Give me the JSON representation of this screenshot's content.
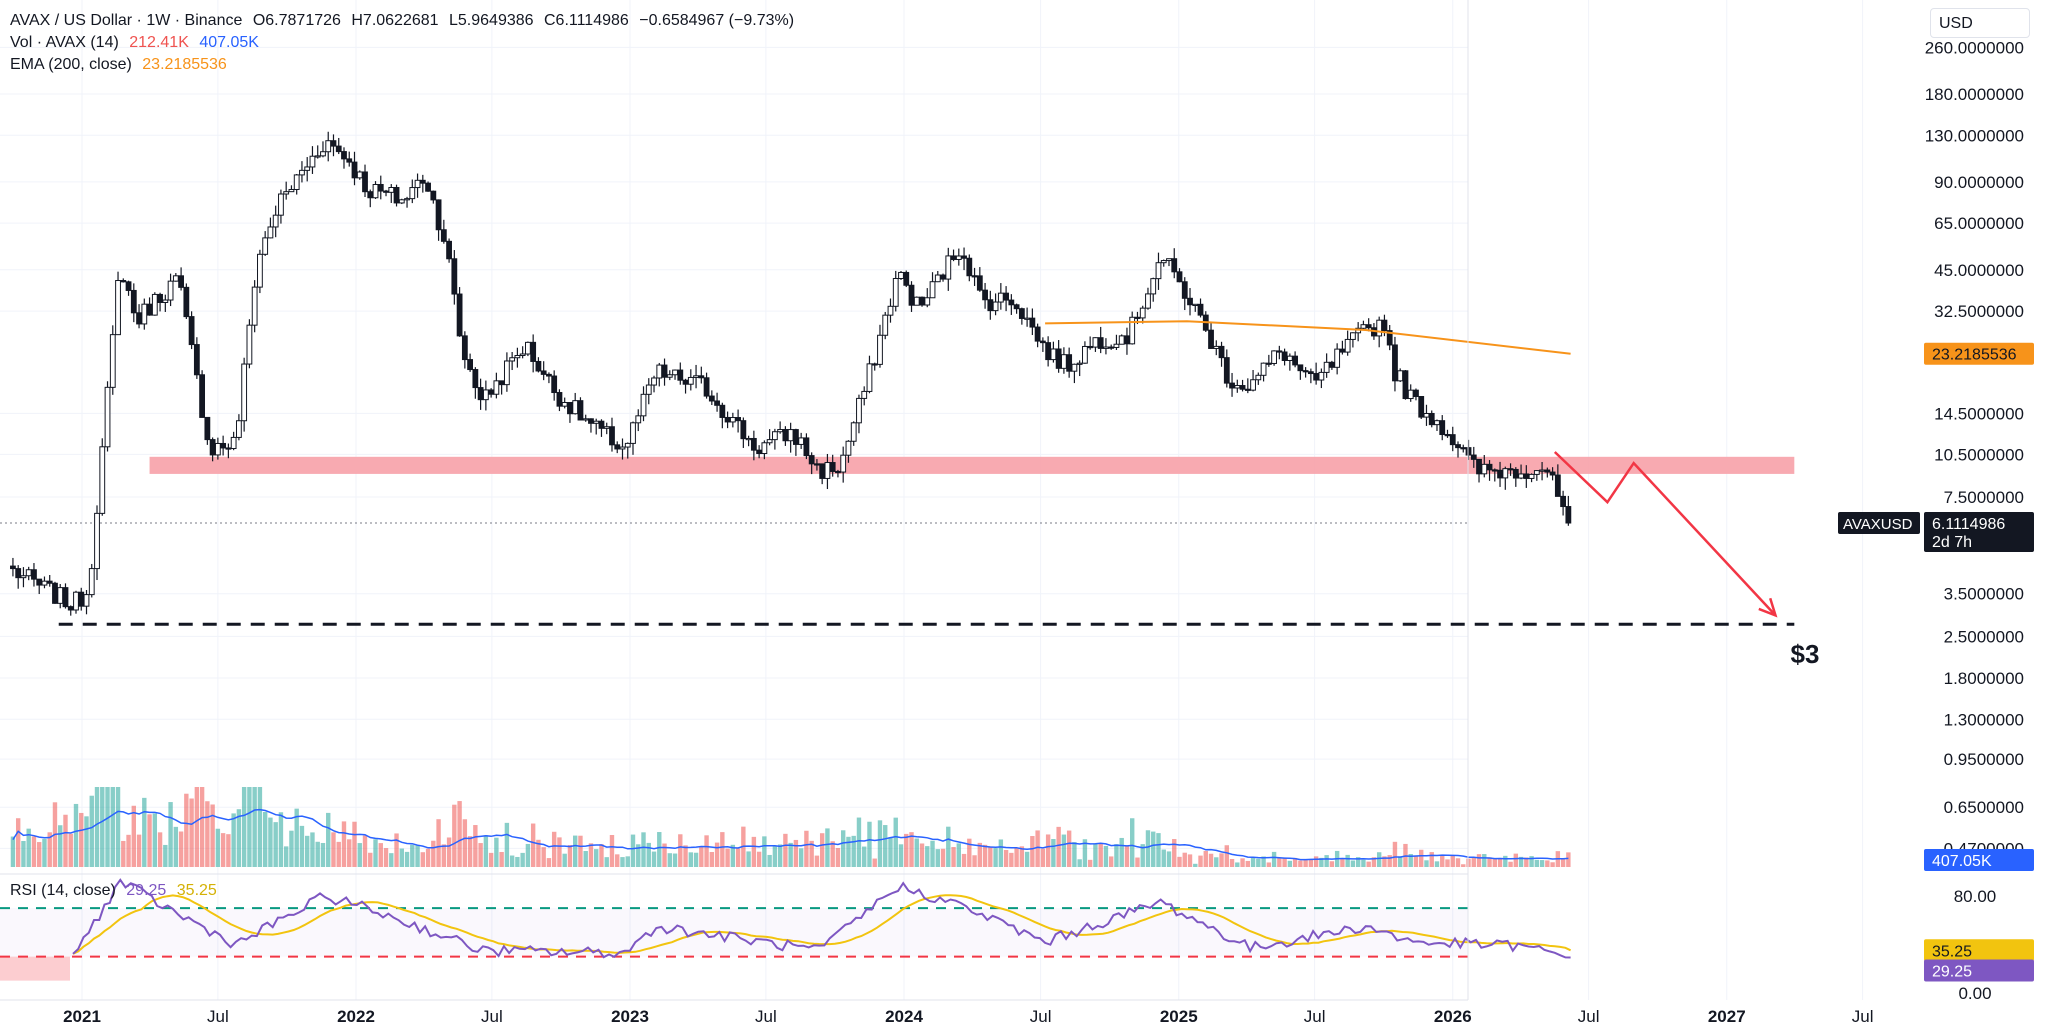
{
  "header": {
    "symbol": "AVAX / US Dollar · 1W · Binance",
    "open": "O6.7871726",
    "high": "H7.0622681",
    "low": "L5.9649386",
    "close": "C6.1114986",
    "change": "−0.6584967 (−9.73%)",
    "vol_label": "Vol · AVAX (14)",
    "vol_value": "212.41K",
    "vol_ma": "407.05K",
    "ema_label": "EMA (200, close)",
    "ema_value": "23.2185536",
    "rsi_label": "RSI (14, close)",
    "rsi_value": "29.25",
    "rsi_ma": "35.25",
    "currency": "USD"
  },
  "badges": {
    "ema": "23.2185536",
    "ticker": "AVAXUSD",
    "price": "6.1114986",
    "countdown": "2d 7h",
    "volume": "407.05K",
    "rsi_ma": "35.25",
    "rsi": "29.25"
  },
  "annotation": {
    "target_label": "$3"
  },
  "colors": {
    "up": "#26a69a",
    "down": "#ef5350",
    "candle": "#131722",
    "ema": "#f7931a",
    "vol_ma": "#2962ff",
    "rsi": "#7e57c2",
    "rsi_ma": "#f2c40f",
    "support_zone": "#f7a1a8",
    "arrow": "#f23645",
    "rsi_upper": "#089981",
    "rsi_lower": "#f23645"
  },
  "chart_data": {
    "type": "candlestick",
    "scale": "log",
    "x_axis": {
      "ticks": [
        "2021",
        "Jul",
        "2022",
        "Jul",
        "2023",
        "Jul",
        "2024",
        "Jul",
        "2025",
        "Jul",
        "2026",
        "Jul",
        "2027",
        "Jul"
      ],
      "bold": [
        "2021",
        "2022",
        "2023",
        "2024",
        "2025",
        "2026",
        "2027"
      ]
    },
    "y_axis": {
      "ticks": [
        "260.0000000",
        "180.0000000",
        "130.0000000",
        "90.0000000",
        "65.0000000",
        "45.0000000",
        "32.5000000",
        "14.5000000",
        "10.5000000",
        "7.5000000",
        "3.5000000",
        "2.5000000",
        "1.8000000",
        "1.3000000",
        "0.9500000",
        "0.6500000",
        "0.4700000"
      ],
      "tick_values": [
        260,
        180,
        130,
        90,
        65,
        45,
        32.5,
        14.5,
        10.5,
        7.5,
        3.5,
        2.5,
        1.8,
        1.3,
        0.95,
        0.65,
        0.47
      ]
    },
    "price_path": [
      {
        "date": "2020-10-01",
        "price": 4.2
      },
      {
        "date": "2020-12-20",
        "price": 3.2
      },
      {
        "date": "2021-01-10",
        "price": 3.6
      },
      {
        "date": "2021-02-07",
        "price": 20
      },
      {
        "date": "2021-02-21",
        "price": 48
      },
      {
        "date": "2021-03-14",
        "price": 30
      },
      {
        "date": "2021-04-11",
        "price": 36
      },
      {
        "date": "2021-05-09",
        "price": 42
      },
      {
        "date": "2021-06-20",
        "price": 11
      },
      {
        "date": "2021-07-25",
        "price": 11.5
      },
      {
        "date": "2021-08-22",
        "price": 48
      },
      {
        "date": "2021-09-19",
        "price": 75
      },
      {
        "date": "2021-11-21",
        "price": 125
      },
      {
        "date": "2021-12-19",
        "price": 110
      },
      {
        "date": "2022-01-16",
        "price": 85
      },
      {
        "date": "2022-03-06",
        "price": 78
      },
      {
        "date": "2022-04-03",
        "price": 95
      },
      {
        "date": "2022-05-01",
        "price": 55
      },
      {
        "date": "2022-05-22",
        "price": 24
      },
      {
        "date": "2022-06-19",
        "price": 16
      },
      {
        "date": "2022-08-14",
        "price": 25
      },
      {
        "date": "2022-09-25",
        "price": 17
      },
      {
        "date": "2022-11-13",
        "price": 13
      },
      {
        "date": "2022-12-25",
        "price": 11
      },
      {
        "date": "2023-02-05",
        "price": 20
      },
      {
        "date": "2023-04-09",
        "price": 18
      },
      {
        "date": "2023-06-18",
        "price": 11
      },
      {
        "date": "2023-08-06",
        "price": 12.5
      },
      {
        "date": "2023-09-10",
        "price": 9.2
      },
      {
        "date": "2023-10-08",
        "price": 9.5
      },
      {
        "date": "2023-11-19",
        "price": 21
      },
      {
        "date": "2023-12-24",
        "price": 44
      },
      {
        "date": "2024-01-21",
        "price": 33
      },
      {
        "date": "2024-03-17",
        "price": 55
      },
      {
        "date": "2024-04-14",
        "price": 35
      },
      {
        "date": "2024-05-26",
        "price": 36
      },
      {
        "date": "2024-07-07",
        "price": 24
      },
      {
        "date": "2024-08-04",
        "price": 21
      },
      {
        "date": "2024-09-15",
        "price": 26
      },
      {
        "date": "2024-10-27",
        "price": 27
      },
      {
        "date": "2024-12-08",
        "price": 50
      },
      {
        "date": "2025-01-12",
        "price": 37
      },
      {
        "date": "2025-02-16",
        "price": 25
      },
      {
        "date": "2025-03-09",
        "price": 19
      },
      {
        "date": "2025-04-06",
        "price": 18
      },
      {
        "date": "2025-05-18",
        "price": 24
      },
      {
        "date": "2025-06-29",
        "price": 18
      },
      {
        "date": "2025-08-03",
        "price": 23
      },
      {
        "date": "2025-09-07",
        "price": 28
      },
      {
        "date": "2025-10-05",
        "price": 30
      },
      {
        "date": "2025-10-12",
        "price": 21
      },
      {
        "date": "2025-11-09",
        "price": 16
      },
      {
        "date": "2025-12-21",
        "price": 13
      },
      {
        "date": "2026-02-01",
        "price": 9.2
      },
      {
        "date": "2026-03-29",
        "price": 9.3
      },
      {
        "date": "2026-05-03",
        "price": 9.6
      },
      {
        "date": "2026-05-24",
        "price": 7.2
      },
      {
        "date": "2026-06-07",
        "price": 6.11
      }
    ],
    "last_price": 6.1114986,
    "ema200": {
      "value": 23.2185536,
      "path": [
        {
          "date": "2024-07-07",
          "price": 29.5
        },
        {
          "date": "2025-01-12",
          "price": 30
        },
        {
          "date": "2025-09-07",
          "price": 28
        },
        {
          "date": "2026-06-07",
          "price": 23.2
        }
      ]
    },
    "support_zone": {
      "low": 9.0,
      "high": 10.3,
      "from": "2021-04-01",
      "to": "2027-04-01"
    },
    "support_line": {
      "price": 2.75,
      "from": "2020-12-01",
      "to": "2027-04-01"
    },
    "projection": [
      {
        "date": "2026-05-17",
        "price": 10.7
      },
      {
        "date": "2026-07-26",
        "price": 7.2
      },
      {
        "date": "2026-08-30",
        "price": 9.8
      },
      {
        "date": "2027-03-07",
        "price": 2.95
      }
    ],
    "volume": {
      "last": "212.41K",
      "ma14": "407.05K"
    },
    "rsi": {
      "period": 14,
      "value": 29.25,
      "ma": 35.25,
      "levels": [
        70,
        30
      ],
      "y_ticks": [
        "80.00",
        "0.00"
      ],
      "path": [
        {
          "date": "2020-12-20",
          "value": 30
        },
        {
          "date": "2021-02-21",
          "value": 92
        },
        {
          "date": "2021-05-09",
          "value": 65
        },
        {
          "date": "2021-07-25",
          "value": 40
        },
        {
          "date": "2021-11-21",
          "value": 80
        },
        {
          "date": "2022-01-16",
          "value": 70
        },
        {
          "date": "2022-06-19",
          "value": 35
        },
        {
          "date": "2022-12-25",
          "value": 33
        },
        {
          "date": "2023-02-05",
          "value": 55
        },
        {
          "date": "2023-09-10",
          "value": 35
        },
        {
          "date": "2023-12-24",
          "value": 88
        },
        {
          "date": "2024-03-17",
          "value": 72
        },
        {
          "date": "2024-07-07",
          "value": 42
        },
        {
          "date": "2024-12-08",
          "value": 75
        },
        {
          "date": "2025-04-06",
          "value": 37
        },
        {
          "date": "2025-09-07",
          "value": 55
        },
        {
          "date": "2025-11-09",
          "value": 42
        },
        {
          "date": "2026-03-29",
          "value": 39
        },
        {
          "date": "2026-06-07",
          "value": 29.25
        }
      ]
    }
  }
}
